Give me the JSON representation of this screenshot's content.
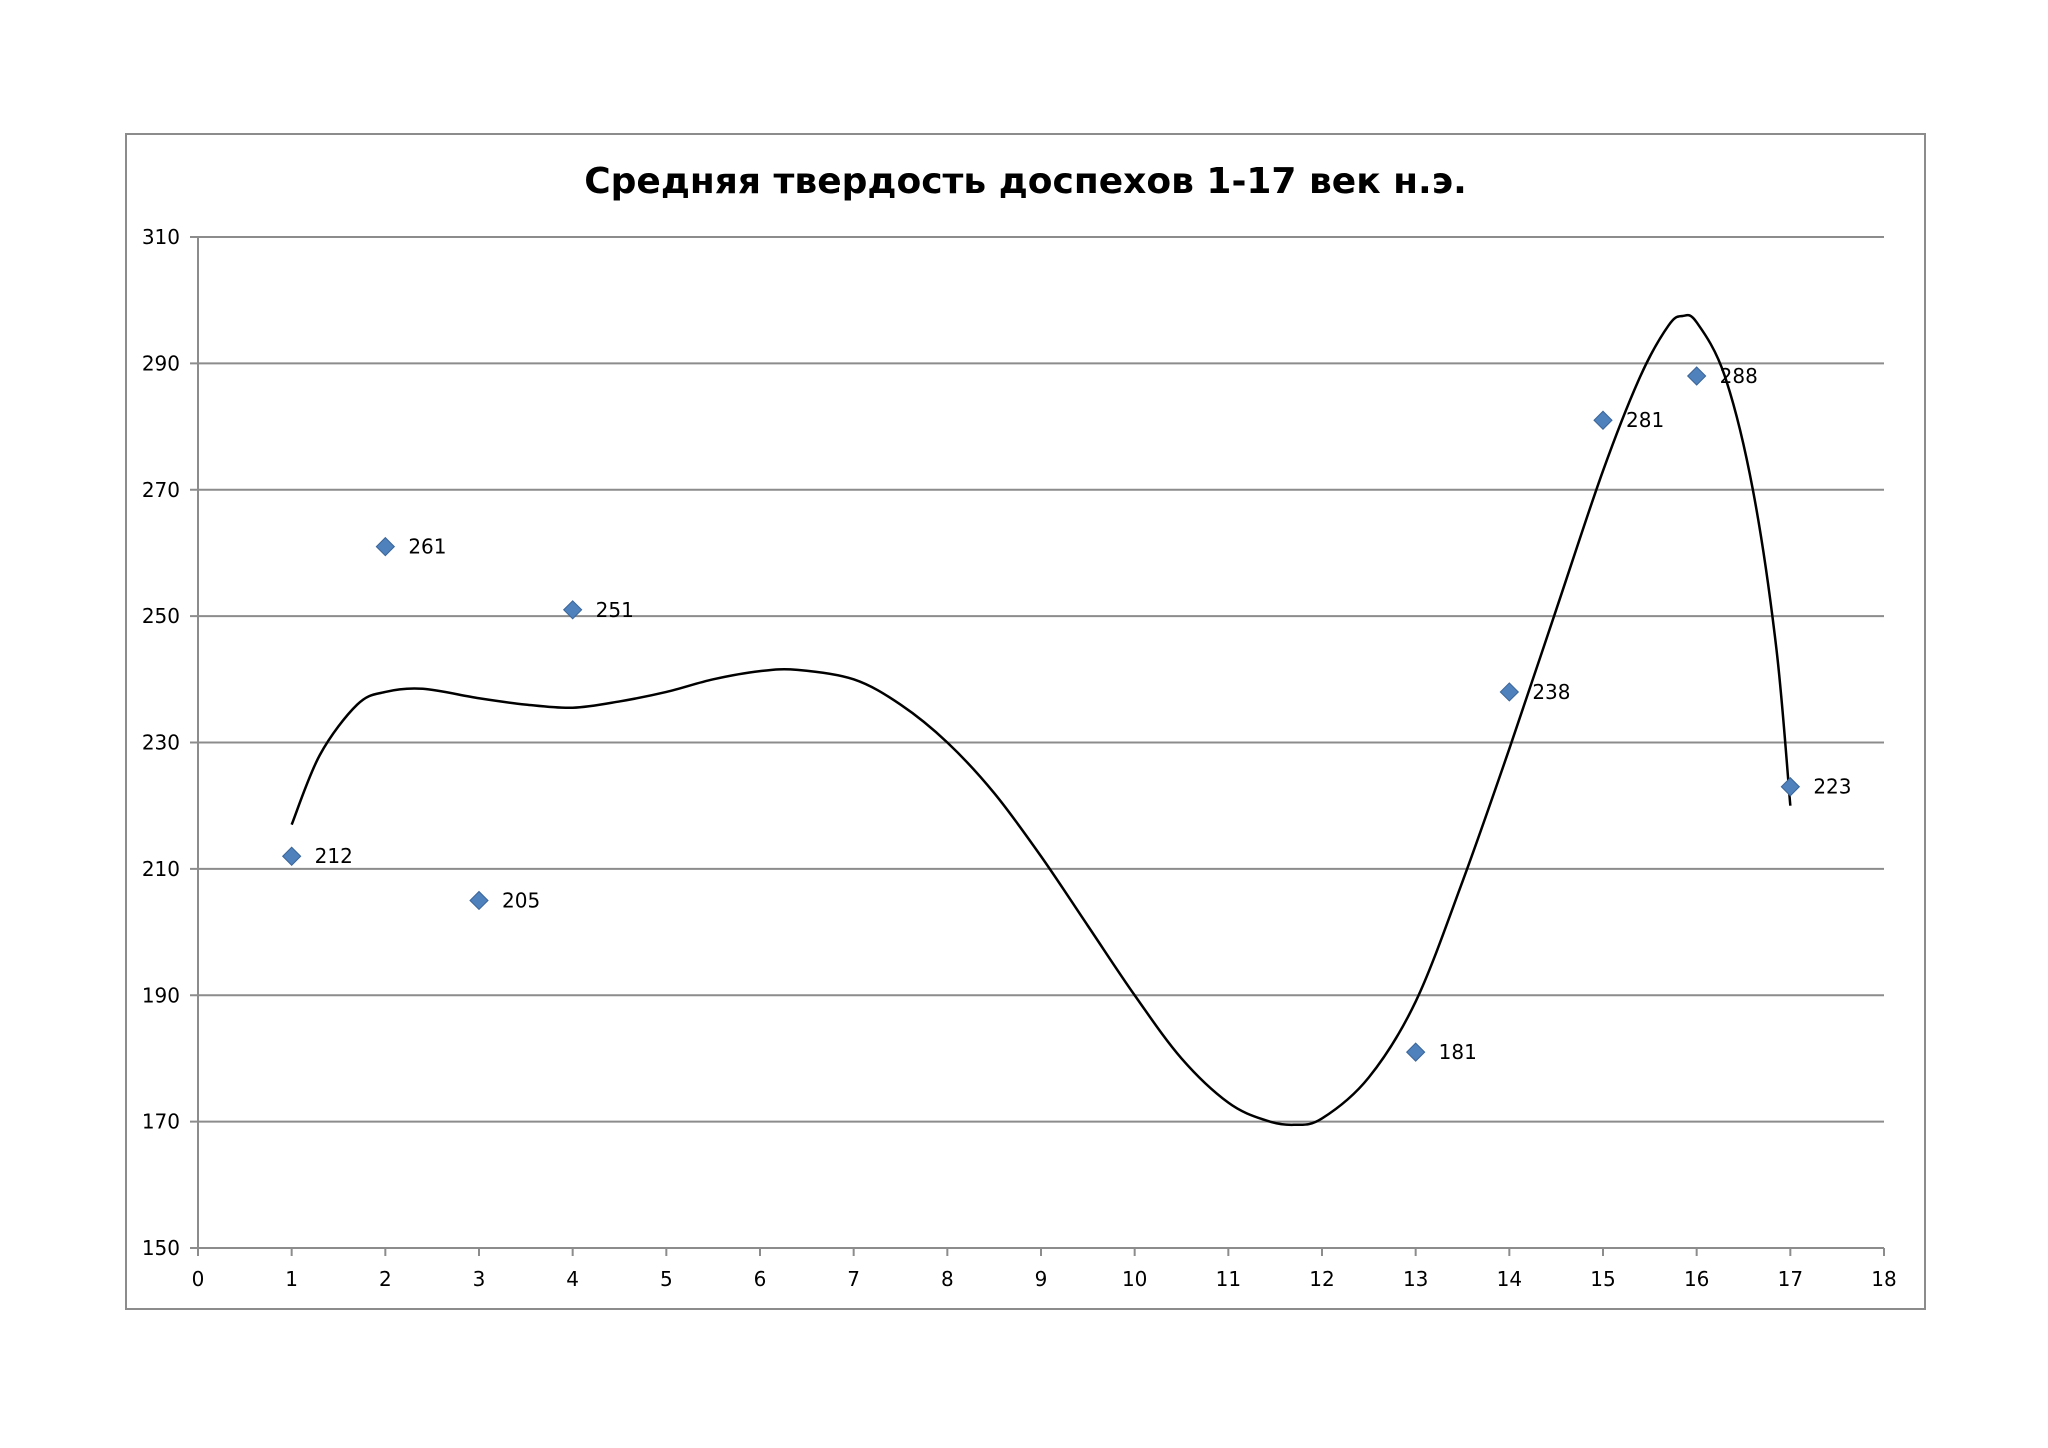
{
  "chart_data": {
    "type": "scatter",
    "title": "Средняя твердость доспехов 1-17 век н.э.",
    "xlabel": "",
    "ylabel": "",
    "xlim": [
      0,
      18
    ],
    "ylim": [
      150,
      310
    ],
    "x_ticks": [
      0,
      1,
      2,
      3,
      4,
      5,
      6,
      7,
      8,
      9,
      10,
      11,
      12,
      13,
      14,
      15,
      16,
      17,
      18
    ],
    "y_ticks": [
      150,
      170,
      190,
      210,
      230,
      250,
      270,
      290,
      310
    ],
    "grid": "horizontal",
    "legend": "none",
    "marker": "diamond",
    "marker_color": "#4f81bd",
    "trendline_color": "#000000",
    "gridline_color": "#8c8c8c",
    "series": [
      {
        "x": [
          1,
          2,
          3,
          4,
          13,
          14,
          15,
          16,
          17
        ],
        "values": [
          212,
          261,
          205,
          251,
          181,
          238,
          281,
          288,
          223
        ],
        "data_labels": [
          "212",
          "261",
          "205",
          "251",
          "181",
          "238",
          "281",
          "288",
          "223"
        ]
      }
    ],
    "trendline": {
      "type": "smooth",
      "points": [
        [
          1,
          217
        ],
        [
          1.3,
          228
        ],
        [
          1.7,
          236
        ],
        [
          2.0,
          238
        ],
        [
          2.4,
          238.5
        ],
        [
          3.0,
          237
        ],
        [
          3.5,
          236
        ],
        [
          4.0,
          235.5
        ],
        [
          4.5,
          236.5
        ],
        [
          5.0,
          238
        ],
        [
          5.5,
          240
        ],
        [
          6.0,
          241.3
        ],
        [
          6.4,
          241.5
        ],
        [
          7.0,
          240
        ],
        [
          7.5,
          236
        ],
        [
          8.0,
          230
        ],
        [
          8.5,
          222
        ],
        [
          9.0,
          212
        ],
        [
          9.5,
          201
        ],
        [
          10.0,
          190
        ],
        [
          10.5,
          180
        ],
        [
          11.0,
          173
        ],
        [
          11.4,
          170.2
        ],
        [
          11.7,
          169.5
        ],
        [
          12.0,
          170.5
        ],
        [
          12.5,
          177
        ],
        [
          13.0,
          189
        ],
        [
          13.5,
          208
        ],
        [
          14.0,
          229
        ],
        [
          14.5,
          251
        ],
        [
          15.0,
          273
        ],
        [
          15.4,
          288
        ],
        [
          15.7,
          296
        ],
        [
          15.85,
          297.5
        ],
        [
          16.0,
          296.5
        ],
        [
          16.3,
          288
        ],
        [
          16.6,
          270
        ],
        [
          16.85,
          245
        ],
        [
          17.0,
          220
        ]
      ]
    }
  }
}
